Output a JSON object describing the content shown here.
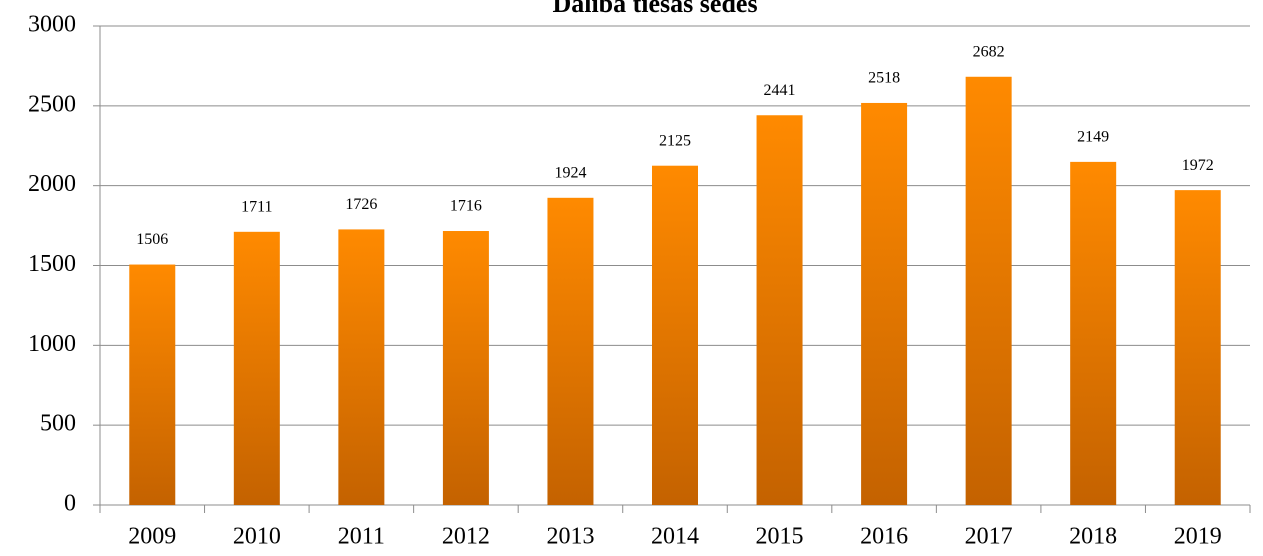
{
  "chart_data": {
    "type": "bar",
    "title": "Dalība tiesas sēdes",
    "categories": [
      "2009",
      "2010",
      "2011",
      "2012",
      "2013",
      "2014",
      "2015",
      "2016",
      "2017",
      "2018",
      "2019"
    ],
    "values": [
      1506,
      1711,
      1726,
      1716,
      1924,
      2125,
      2441,
      2518,
      2682,
      2149,
      1972
    ],
    "color": "#ff8a00",
    "ylim": [
      0,
      3000
    ],
    "yticks": [
      0,
      500,
      1000,
      1500,
      2000,
      2500,
      3000
    ],
    "grid": true
  }
}
